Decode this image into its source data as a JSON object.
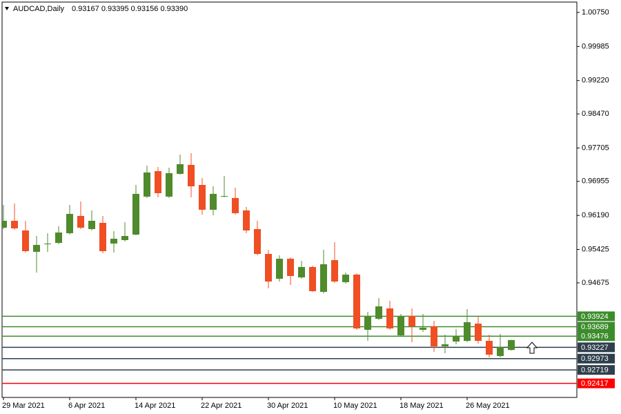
{
  "chart_data": {
    "type": "candlestick",
    "header": {
      "symbol": "AUDCAD,Daily",
      "quote": "0.93167 0.93395 0.93156 0.93390"
    },
    "categories": [
      "29 Mar 2021",
      null,
      null,
      null,
      null,
      null,
      "6 Apr 2021",
      null,
      null,
      null,
      null,
      null,
      "14 Apr 2021",
      null,
      null,
      null,
      null,
      null,
      "22 Apr 2021",
      null,
      null,
      null,
      null,
      null,
      "30 Apr 2021",
      null,
      null,
      null,
      null,
      null,
      "10 May 2021",
      null,
      null,
      null,
      null,
      null,
      "18 May 2021",
      null,
      null,
      null,
      null,
      null,
      "26 May 2021",
      null,
      null,
      null,
      null
    ],
    "series": [
      {
        "up_color": "#4f8a2c",
        "down_color": "#f04e23",
        "open": [
          0.95914,
          0.96069,
          0.95852,
          0.95372,
          0.95542,
          0.95573,
          0.9579,
          0.96178,
          0.95883,
          0.96023,
          0.95558,
          0.95635,
          0.95759,
          0.96612,
          0.97185,
          0.96612,
          0.97123,
          0.97325,
          0.96875,
          0.96317,
          0.96612,
          0.96581,
          0.96302,
          0.95883,
          0.95325,
          0.94767,
          0.95217,
          0.94798,
          0.95031,
          0.94473,
          0.95186,
          0.9469,
          0.9486,
          0.9362,
          0.93868,
          0.94101,
          0.93496,
          0.9393,
          0.9362,
          0.93698,
          0.93248,
          0.93357,
          0.93372,
          0.9376,
          0.93372,
          0.93031,
          0.93167
        ],
        "high": [
          0.96426,
          0.96457,
          0.96069,
          0.95728,
          0.9579,
          0.95945,
          0.96426,
          0.96503,
          0.96302,
          0.96178,
          0.95837,
          0.96038,
          0.96875,
          0.97309,
          0.97278,
          0.97263,
          0.97557,
          0.97588,
          0.9703,
          0.96844,
          0.97077,
          0.96813,
          0.96379,
          0.96069,
          0.95418,
          0.95294,
          0.95248,
          0.9517,
          0.95062,
          0.95418,
          0.95589,
          0.94907,
          0.94891,
          0.94023,
          0.94333,
          0.94271,
          0.93977,
          0.94101,
          0.93977,
          0.93822,
          0.93512,
          0.93636,
          0.94085,
          0.93915,
          0.93512,
          0.93527,
          0.93395
        ],
        "low": [
          0.95883,
          0.95868,
          0.95356,
          0.94907,
          0.95372,
          0.95542,
          0.95759,
          0.95883,
          0.95852,
          0.95341,
          0.95356,
          0.95604,
          0.95744,
          0.96581,
          0.96596,
          0.96581,
          0.97108,
          0.96596,
          0.96209,
          0.96193,
          0.96596,
          0.96209,
          0.9579,
          0.95294,
          0.9455,
          0.94705,
          0.94628,
          0.94767,
          0.94473,
          0.94442,
          0.94674,
          0.94659,
          0.9362,
          0.93372,
          0.93837,
          0.9362,
          0.93481,
          0.93341,
          0.93574,
          0.93124,
          0.93093,
          0.93295,
          0.93341,
          0.9331,
          0.93,
          0.93,
          0.93156
        ],
        "close": [
          0.96069,
          0.95899,
          0.95387,
          0.95527,
          0.95558,
          0.95806,
          0.96224,
          0.95914,
          0.96069,
          0.95387,
          0.95666,
          0.95728,
          0.96674,
          0.97154,
          0.96689,
          0.97139,
          0.9734,
          0.96844,
          0.96317,
          0.96674,
          0.96627,
          0.9624,
          0.95852,
          0.95325,
          0.94705,
          0.95217,
          0.94829,
          0.95031,
          0.94488,
          0.95093,
          0.94705,
          0.9486,
          0.93651,
          0.9393,
          0.94147,
          0.93651,
          0.9393,
          0.93698,
          0.93667,
          0.93248,
          0.93295,
          0.93481,
          0.93791,
          0.93372,
          0.93062,
          0.93233,
          0.9339
        ]
      }
    ],
    "ylim": [
      0.92101,
      1.01029
    ],
    "yticks": [
      {
        "value": 1.0075,
        "label": "1.00750"
      },
      {
        "value": 0.99985,
        "label": "0.99985"
      },
      {
        "value": 0.9922,
        "label": "0.99220"
      },
      {
        "value": 0.9847,
        "label": "0.98470"
      },
      {
        "value": 0.97705,
        "label": "0.97705"
      },
      {
        "value": 0.96955,
        "label": "0.96955"
      },
      {
        "value": 0.9619,
        "label": "0.96190"
      },
      {
        "value": 0.95425,
        "label": "0.95425"
      },
      {
        "value": 0.94675,
        "label": "0.94675"
      }
    ],
    "levels": [
      {
        "value": 0.93924,
        "label": "0.93924",
        "color": "#3c8c2c"
      },
      {
        "value": 0.93689,
        "label": "0.93689",
        "color": "#3c8c2c"
      },
      {
        "value": 0.93476,
        "label": "0.93476",
        "color": "#3c8c2c"
      },
      {
        "value": 0.93227,
        "label": "0.93227",
        "color": "#2f3f4c"
      },
      {
        "value": 0.92973,
        "label": "0.92973",
        "color": "#2f3f4c"
      },
      {
        "value": 0.92719,
        "label": "0.92719",
        "color": "#2f3f4c"
      },
      {
        "value": 0.92417,
        "label": "0.92417",
        "color": "#ff0000"
      }
    ]
  }
}
